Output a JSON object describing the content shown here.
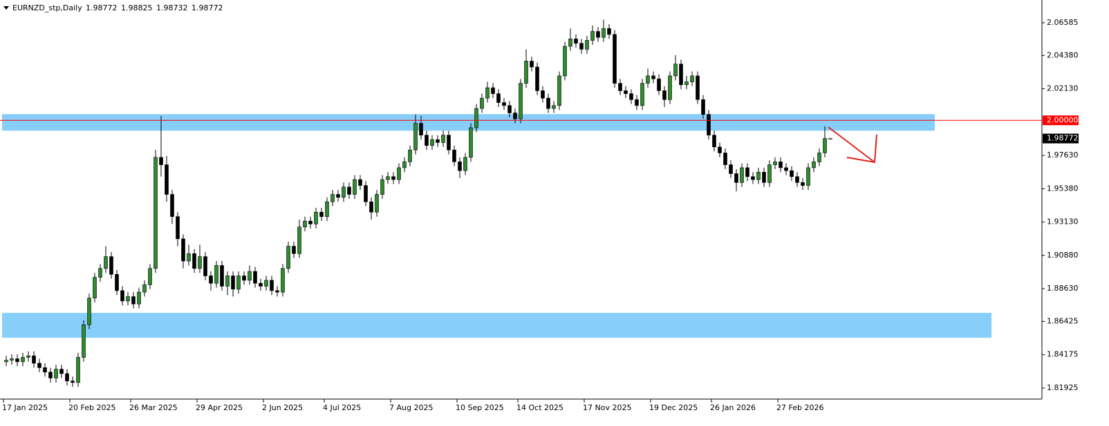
{
  "chart_data": {
    "type": "candlestick",
    "title": "EURNZD_stp,Daily",
    "up_color": "#2e8b2e",
    "down_color": "#000000",
    "ylim": [
      1.81179,
      2.08124
    ],
    "xlim": [
      0,
      150
    ],
    "yticks": [
      2.06585,
      {
        "value": 2.0438,
        "label": "2.04380"
      },
      {
        "value": 2.0213,
        "label": "2.02130"
      },
      {
        "value": 1.9763,
        "label": "1.97630"
      },
      {
        "value": 1.9538,
        "label": "1.95380"
      },
      {
        "value": 1.9313,
        "label": "1.93130"
      },
      {
        "value": 1.9088,
        "label": "1.90880"
      },
      {
        "value": 1.8863,
        "label": "1.88630"
      },
      1.86425,
      1.84175,
      1.81925
    ],
    "xticks": [
      {
        "value": 0,
        "label": "17 Jan 2025"
      },
      {
        "value": 12,
        "label": "20 Feb 2025"
      },
      {
        "value": 23,
        "label": "26 Mar 2025"
      },
      {
        "value": 35,
        "label": "29 Apr 2025"
      },
      {
        "value": 47,
        "label": "2 Jun 2025"
      },
      {
        "value": 58,
        "label": "4 Jul 2025"
      },
      {
        "value": 70,
        "label": "7 Aug 2025"
      },
      {
        "value": 82,
        "label": "10 Sep 2025"
      },
      {
        "value": 93,
        "label": "14 Oct 2025"
      },
      {
        "value": 105,
        "label": "17 Nov 2025"
      },
      {
        "value": 117,
        "label": "19 Dec 2025"
      },
      {
        "value": 128,
        "label": "26 Jan 2026"
      },
      {
        "value": 140,
        "label": "27 Feb 2026"
      }
    ],
    "level_line": {
      "value": 2,
      "label": "2.00000",
      "color": "#ff0000"
    },
    "zones": [
      {
        "from": 1.993,
        "to": 2.0042,
        "color": "#87cefa"
      },
      {
        "from": 1.8532,
        "to": 1.87,
        "color": "#87cefa"
      }
    ],
    "open": [
      1.837,
      1.838,
      1.839,
      1.837,
      1.84,
      1.841,
      1.836,
      1.833,
      1.83,
      1.826,
      1.832,
      1.829,
      1.824,
      1.823,
      1.84,
      1.862,
      1.88,
      1.894,
      1.9,
      1.908,
      1.896,
      1.885,
      1.878,
      1.881,
      1.876,
      1.884,
      1.889,
      1.9,
      1.975,
      1.97,
      1.95,
      1.935,
      1.92,
      1.905,
      1.91,
      1.9,
      1.908,
      1.895,
      1.89,
      1.902,
      1.888,
      1.895,
      1.886,
      1.895,
      1.892,
      1.898,
      1.89,
      1.888,
      1.892,
      1.885,
      1.884,
      1.9,
      1.915,
      1.91,
      1.928,
      1.932,
      1.93,
      1.938,
      1.935,
      1.945,
      1.95,
      1.948,
      1.955,
      1.95,
      1.96,
      1.956,
      1.945,
      1.938,
      1.95,
      1.96,
      1.962,
      1.96,
      1.968,
      1.972,
      1.98,
      1.998,
      1.99,
      1.983,
      1.987,
      1.985,
      1.99,
      1.98,
      1.972,
      1.966,
      1.975,
      1.995,
      2.008,
      2.015,
      2.022,
      2.018,
      2.012,
      2.01,
      2.005,
      2.001,
      2.025,
      2.04,
      2.036,
      2.02,
      2.015,
      2.008,
      2.01,
      2.03,
      2.05,
      2.055,
      2.052,
      2.048,
      2.054,
      2.06,
      2.056,
      2.062,
      2.058,
      2.025,
      2.02,
      2.018,
      2.014,
      2.01,
      2.025,
      2.03,
      2.028,
      2.02,
      2.014,
      2.03,
      2.038,
      2.024,
      2.026,
      2.03,
      2.014,
      2.004,
      1.99,
      1.982,
      1.978,
      1.97,
      1.964,
      1.958,
      1.968,
      1.962,
      1.96,
      1.965,
      1.958,
      1.97,
      1.972,
      1.968,
      1.966,
      1.962,
      1.958,
      1.956,
      1.968,
      1.972,
      1.978,
      1.98772
    ],
    "high": [
      1.841,
      1.842,
      1.842,
      1.843,
      1.844,
      1.844,
      1.839,
      1.836,
      1.833,
      1.835,
      1.835,
      1.832,
      1.827,
      1.843,
      1.865,
      1.883,
      1.897,
      1.903,
      1.915,
      1.911,
      1.899,
      1.888,
      1.884,
      1.884,
      1.887,
      1.892,
      1.903,
      1.98,
      2.003,
      1.976,
      1.953,
      1.938,
      1.923,
      1.916,
      1.913,
      1.916,
      1.911,
      1.898,
      1.905,
      1.905,
      1.898,
      1.898,
      1.898,
      1.898,
      1.902,
      1.901,
      1.893,
      1.895,
      1.895,
      1.888,
      1.903,
      1.918,
      1.918,
      1.933,
      1.935,
      1.935,
      1.941,
      1.941,
      1.948,
      1.953,
      1.953,
      1.958,
      1.958,
      1.963,
      1.963,
      1.959,
      1.948,
      1.953,
      1.963,
      1.965,
      1.965,
      1.971,
      1.975,
      1.983,
      2.004,
      2.003,
      1.993,
      1.99,
      1.99,
      1.993,
      1.993,
      1.983,
      1.975,
      1.978,
      1.998,
      2.011,
      2.018,
      2.026,
      2.025,
      2.021,
      2.015,
      2.013,
      2.008,
      2.028,
      2.048,
      2.043,
      2.039,
      2.023,
      2.018,
      2.013,
      2.033,
      2.053,
      2.062,
      2.058,
      2.055,
      2.057,
      2.064,
      2.063,
      2.068,
      2.065,
      2.061,
      2.028,
      2.023,
      2.021,
      2.017,
      2.028,
      2.035,
      2.033,
      2.031,
      2.023,
      2.033,
      2.044,
      2.041,
      2.03,
      2.033,
      2.033,
      2.017,
      2.007,
      1.993,
      1.985,
      1.981,
      1.973,
      1.967,
      1.971,
      1.971,
      1.965,
      1.968,
      1.968,
      1.973,
      1.975,
      1.975,
      1.971,
      1.969,
      1.965,
      1.961,
      1.971,
      1.975,
      1.981,
      1.996,
      1.98825
    ],
    "low": [
      1.834,
      1.835,
      1.834,
      1.834,
      1.837,
      1.833,
      1.83,
      1.827,
      1.823,
      1.823,
      1.826,
      1.821,
      1.82,
      1.82,
      1.837,
      1.859,
      1.877,
      1.891,
      1.897,
      1.893,
      1.882,
      1.875,
      1.875,
      1.873,
      1.873,
      1.881,
      1.886,
      1.897,
      1.962,
      1.945,
      1.93,
      1.915,
      1.9,
      1.902,
      1.897,
      1.897,
      1.892,
      1.885,
      1.887,
      1.885,
      1.882,
      1.881,
      1.883,
      1.889,
      1.889,
      1.887,
      1.885,
      1.885,
      1.882,
      1.881,
      1.881,
      1.897,
      1.907,
      1.907,
      1.925,
      1.927,
      1.927,
      1.932,
      1.932,
      1.942,
      1.945,
      1.945,
      1.947,
      1.947,
      1.953,
      1.942,
      1.933,
      1.935,
      1.947,
      1.957,
      1.957,
      1.957,
      1.965,
      1.969,
      1.977,
      1.987,
      1.98,
      1.98,
      1.982,
      1.982,
      1.977,
      1.969,
      1.961,
      1.963,
      1.972,
      1.992,
      2.005,
      2.012,
      2.015,
      2.009,
      2.007,
      2.002,
      1.998,
      1.998,
      2.022,
      2.033,
      2.017,
      2.012,
      2.005,
      2.005,
      2.007,
      2.027,
      2.047,
      2.049,
      2.045,
      2.045,
      2.051,
      2.053,
      2.053,
      2.055,
      2.022,
      2.017,
      2.015,
      2.011,
      2.007,
      2.007,
      2.022,
      2.025,
      2.017,
      2.009,
      2.011,
      2.027,
      2.021,
      2.021,
      2.023,
      2.011,
      2.001,
      1.987,
      1.979,
      1.975,
      1.967,
      1.961,
      1.952,
      1.955,
      1.959,
      1.957,
      1.957,
      1.955,
      1.955,
      1.967,
      1.965,
      1.963,
      1.959,
      1.955,
      1.953,
      1.953,
      1.965,
      1.969,
      1.975,
      1.98732
    ],
    "close": [
      1.838,
      1.839,
      1.837,
      1.84,
      1.841,
      1.836,
      1.833,
      1.83,
      1.826,
      1.832,
      1.829,
      1.824,
      1.823,
      1.84,
      1.862,
      1.88,
      1.894,
      1.9,
      1.908,
      1.896,
      1.885,
      1.878,
      1.881,
      1.876,
      1.884,
      1.889,
      1.9,
      1.975,
      1.97,
      1.95,
      1.935,
      1.92,
      1.905,
      1.91,
      1.9,
      1.908,
      1.895,
      1.89,
      1.902,
      1.888,
      1.895,
      1.886,
      1.895,
      1.892,
      1.898,
      1.89,
      1.888,
      1.892,
      1.885,
      1.884,
      1.9,
      1.915,
      1.91,
      1.928,
      1.932,
      1.93,
      1.938,
      1.935,
      1.945,
      1.95,
      1.948,
      1.955,
      1.95,
      1.96,
      1.956,
      1.945,
      1.938,
      1.95,
      1.96,
      1.962,
      1.96,
      1.968,
      1.972,
      1.98,
      1.998,
      1.99,
      1.983,
      1.987,
      1.985,
      1.99,
      1.98,
      1.972,
      1.966,
      1.975,
      1.995,
      2.008,
      2.015,
      2.022,
      2.018,
      2.012,
      2.01,
      2.005,
      2.001,
      2.025,
      2.04,
      2.036,
      2.02,
      2.015,
      2.008,
      2.01,
      2.03,
      2.05,
      2.055,
      2.052,
      2.048,
      2.054,
      2.06,
      2.056,
      2.062,
      2.058,
      2.025,
      2.02,
      2.018,
      2.014,
      2.01,
      2.025,
      2.03,
      2.028,
      2.02,
      2.014,
      2.03,
      2.038,
      2.024,
      2.026,
      2.03,
      2.014,
      2.004,
      1.99,
      1.982,
      1.978,
      1.97,
      1.964,
      1.958,
      1.968,
      1.962,
      1.96,
      1.965,
      1.958,
      1.97,
      1.972,
      1.968,
      1.966,
      1.962,
      1.958,
      1.956,
      1.968,
      1.972,
      1.978,
      1.98772,
      1.98772
    ]
  }
}
